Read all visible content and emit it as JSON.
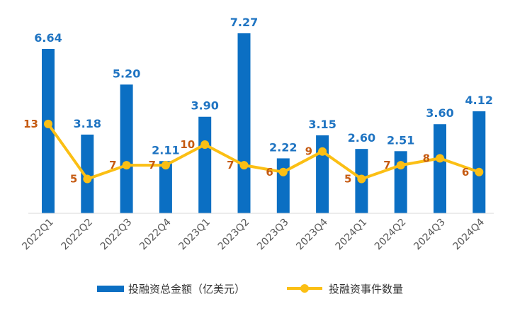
{
  "chart_data": {
    "type": "bar",
    "categories": [
      "2022Q1",
      "2022Q2",
      "2022Q3",
      "2022Q4",
      "2023Q1",
      "2023Q2",
      "2023Q3",
      "2023Q4",
      "2024Q1",
      "2024Q2",
      "2024Q3",
      "2024Q4"
    ],
    "series": [
      {
        "name": "投融资总金额（亿美元）",
        "type": "bar",
        "values": [
          6.64,
          3.18,
          5.2,
          2.11,
          3.9,
          7.27,
          2.22,
          3.15,
          2.6,
          2.51,
          3.6,
          4.12
        ],
        "labels": [
          "6.64",
          "3.18",
          "5.20",
          "2.11",
          "3.90",
          "7.27",
          "2.22",
          "3.15",
          "2.60",
          "2.51",
          "3.60",
          "4.12"
        ],
        "color": "#0b6fc3",
        "label_color": "#1f74c2"
      },
      {
        "name": "投融资事件数量",
        "type": "line",
        "values": [
          13,
          5,
          7,
          7,
          10,
          7,
          6,
          9,
          5,
          7,
          8,
          6
        ],
        "labels": [
          "13",
          "5",
          "7",
          "7",
          "10",
          "7",
          "6",
          "9",
          "5",
          "7",
          "8",
          "6"
        ],
        "color": "#fbbf14",
        "label_color": "#c55a11"
      }
    ],
    "bar_ylim": [
      0,
      7.5
    ],
    "line_ylim": [
      0,
      26
    ],
    "grid": false,
    "legend_position": "bottom"
  }
}
